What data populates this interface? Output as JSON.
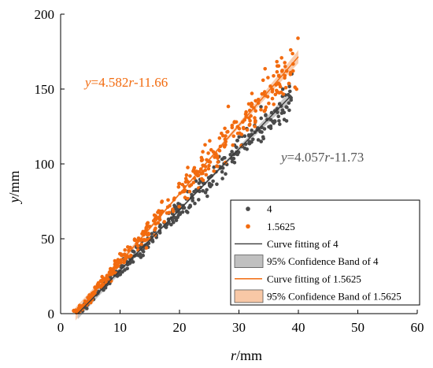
{
  "chart_data": {
    "type": "scatter",
    "title": "",
    "xlabel": {
      "var": "r",
      "unit": "/mm"
    },
    "ylabel": {
      "var": "y",
      "unit": "/mm"
    },
    "xlim": [
      0,
      60
    ],
    "ylim": [
      0,
      200
    ],
    "x_ticks": [
      0,
      10,
      20,
      30,
      40,
      50,
      60
    ],
    "y_ticks": [
      0,
      50,
      100,
      150,
      200
    ],
    "grid": false,
    "legend_position": "bottom-right",
    "colors": {
      "series_4": "#4a4a4a",
      "series_15625": "#f26b0f",
      "band_4": "#c0c0c0",
      "band_15625": "#f8c8a6"
    },
    "series": [
      {
        "name": "4",
        "color": "#4a4a4a",
        "x_range": [
          3.5,
          39
        ],
        "slope": 4.057,
        "intercept": -11.73,
        "count": 300
      },
      {
        "name": "1.5625",
        "color": "#f26b0f",
        "x_range": [
          2.0,
          40
        ],
        "slope": 4.582,
        "intercept": -11.66,
        "count": 360
      }
    ],
    "fits": [
      {
        "name": "Curve fitting of 4",
        "slope": 4.057,
        "intercept": -11.73,
        "x_range": [
          2.9,
          38.5
        ],
        "color": "#3a3a3a"
      },
      {
        "name": "Curve fitting of 1.5625",
        "slope": 4.582,
        "intercept": -11.66,
        "x_range": [
          2.5,
          40
        ],
        "color": "#f26b0f"
      }
    ],
    "legend": [
      {
        "label": "4",
        "kind": "marker",
        "color": "#4a4a4a"
      },
      {
        "label": "1.5625",
        "kind": "marker",
        "color": "#f26b0f"
      },
      {
        "label": "Curve fitting of 4",
        "kind": "line",
        "color": "#3a3a3a"
      },
      {
        "label": "95% Confidence Band of 4",
        "kind": "band",
        "color": "#c0c0c0"
      },
      {
        "label": "Curve fitting of 1.5625",
        "kind": "line",
        "color": "#f26b0f"
      },
      {
        "label": "95% Confidence Band of 1.5625",
        "kind": "band",
        "color": "#f8c8a6"
      }
    ],
    "annotations": [
      {
        "text_var": "y",
        "text_mid": "=4.582",
        "text_var2": "r",
        "text_tail": "-11.66",
        "color": "#f26b0f"
      },
      {
        "text_var": "y",
        "text_mid": "=4.057",
        "text_var2": "r",
        "text_tail": "-11.73",
        "color": "#555555"
      }
    ]
  }
}
